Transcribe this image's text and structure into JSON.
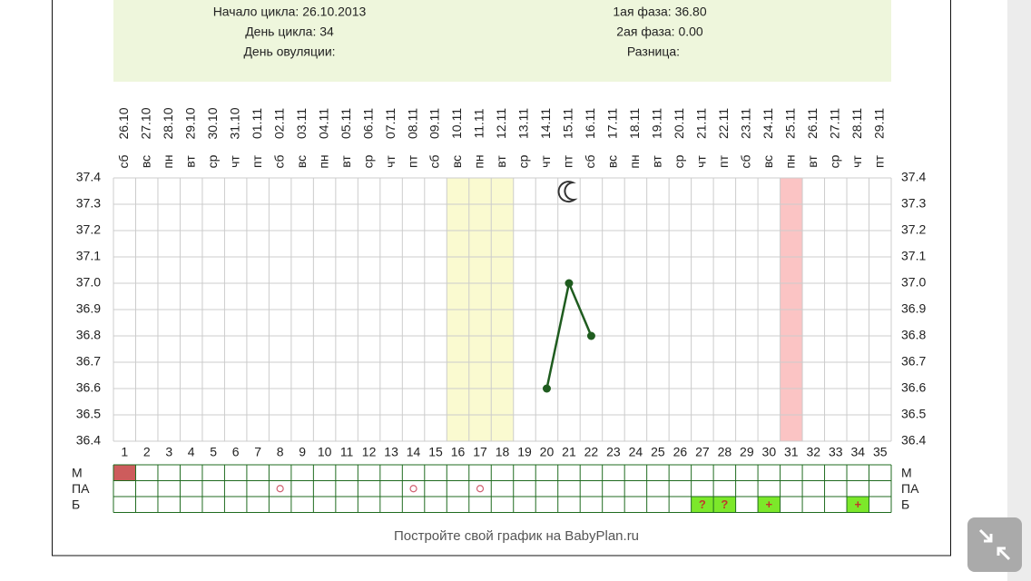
{
  "header": {
    "left": [
      "Начало цикла: 26.10.2013",
      "День цикла: 34",
      "День овуляции:"
    ],
    "right": [
      "1ая фаза: 36.80",
      "2ая фаза: 0.00",
      "Разница:"
    ]
  },
  "chart_data": {
    "type": "line",
    "color": "#1f5c1f",
    "categories": [
      1,
      2,
      3,
      4,
      5,
      6,
      7,
      8,
      9,
      10,
      11,
      12,
      13,
      14,
      15,
      16,
      17,
      18,
      19,
      20,
      21,
      22,
      23,
      24,
      25,
      26,
      27,
      28,
      29,
      30,
      31,
      32,
      33,
      34,
      35
    ],
    "dates": [
      "26.10",
      "27.10",
      "28.10",
      "29.10",
      "30.10",
      "31.10",
      "01.11",
      "02.11",
      "03.11",
      "04.11",
      "05.11",
      "06.11",
      "07.11",
      "08.11",
      "09.11",
      "10.11",
      "11.11",
      "12.11",
      "13.11",
      "14.11",
      "15.11",
      "16.11",
      "17.11",
      "18.11",
      "19.11",
      "20.11",
      "21.11",
      "22.11",
      "23.11",
      "24.11",
      "25.11",
      "26.11",
      "27.11",
      "28.11",
      "29.11"
    ],
    "weekdays": [
      "сб",
      "вс",
      "пн",
      "вт",
      "ср",
      "чт",
      "пт",
      "сб",
      "вс",
      "пн",
      "вт",
      "ср",
      "чт",
      "пт",
      "сб",
      "вс",
      "пн",
      "вт",
      "ср",
      "чт",
      "пт",
      "сб",
      "вс",
      "пн",
      "вт",
      "ср",
      "чт",
      "пт",
      "сб",
      "вс",
      "пн",
      "вт",
      "ср",
      "чт",
      "пт"
    ],
    "values": [
      null,
      null,
      null,
      null,
      null,
      null,
      null,
      null,
      null,
      null,
      null,
      null,
      null,
      null,
      null,
      null,
      null,
      null,
      null,
      36.6,
      37.0,
      36.8,
      null,
      null,
      null,
      null,
      null,
      null,
      null,
      null,
      null,
      null,
      null,
      null,
      null
    ],
    "ylim": [
      36.4,
      37.4
    ],
    "yticks": [
      36.4,
      36.5,
      36.6,
      36.7,
      36.8,
      36.9,
      {
        "value": 37,
        "label": "37.0"
      },
      37.1,
      37.2,
      37.3,
      37.4
    ],
    "grid": true,
    "fertile_days": [
      16,
      17,
      18
    ],
    "period_days": [
      31
    ],
    "moon_day": 21,
    "rows": [
      {
        "label": "М",
        "fill_days": [
          1
        ],
        "circle_days": [],
        "marks": []
      },
      {
        "label": "ПА",
        "fill_days": [],
        "circle_days": [
          8,
          14,
          17
        ],
        "marks": []
      },
      {
        "label": "Б",
        "fill_days": [],
        "circle_days": [],
        "marks": [
          {
            "day": 27,
            "label": "?"
          },
          {
            "day": 28,
            "label": "?"
          },
          {
            "day": 30,
            "label": "+"
          },
          {
            "day": 34,
            "label": "+"
          }
        ]
      }
    ]
  },
  "footer": "Постройте свой график на BabyPlan.ru"
}
